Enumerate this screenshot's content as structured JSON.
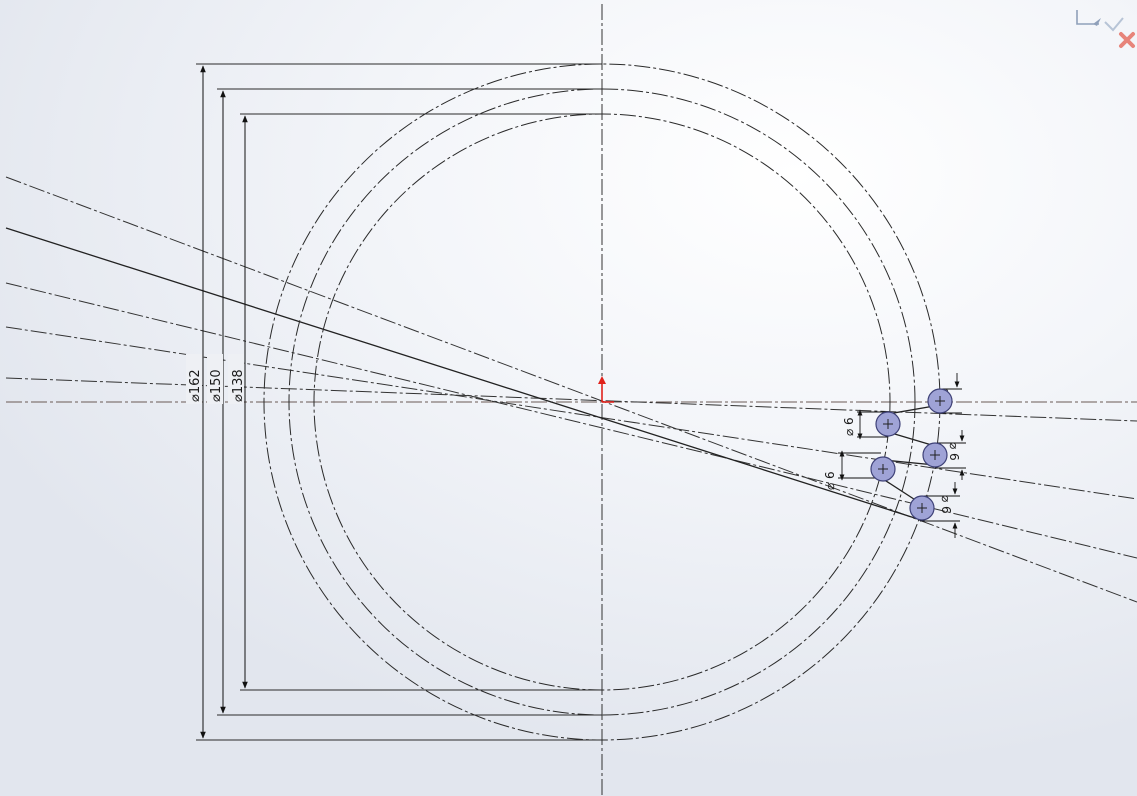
{
  "app": "SolidWorks sketch",
  "dimensions": {
    "d162": "⌀162",
    "d150": "⌀150",
    "d138": "⌀138",
    "hole_diameter": "⌀ 6"
  },
  "colors": {
    "hole_fill": "#9fa3d6",
    "hole_stroke": "#5a5e94",
    "sketch_line": "#222222",
    "origin_red": "#e0221b",
    "confirm_x": "#e7847a",
    "confirm_check": "#8fa0ba"
  },
  "icons": {
    "confirm": "confirmation-corner-icon",
    "origin": "sketch-origin-icon"
  }
}
